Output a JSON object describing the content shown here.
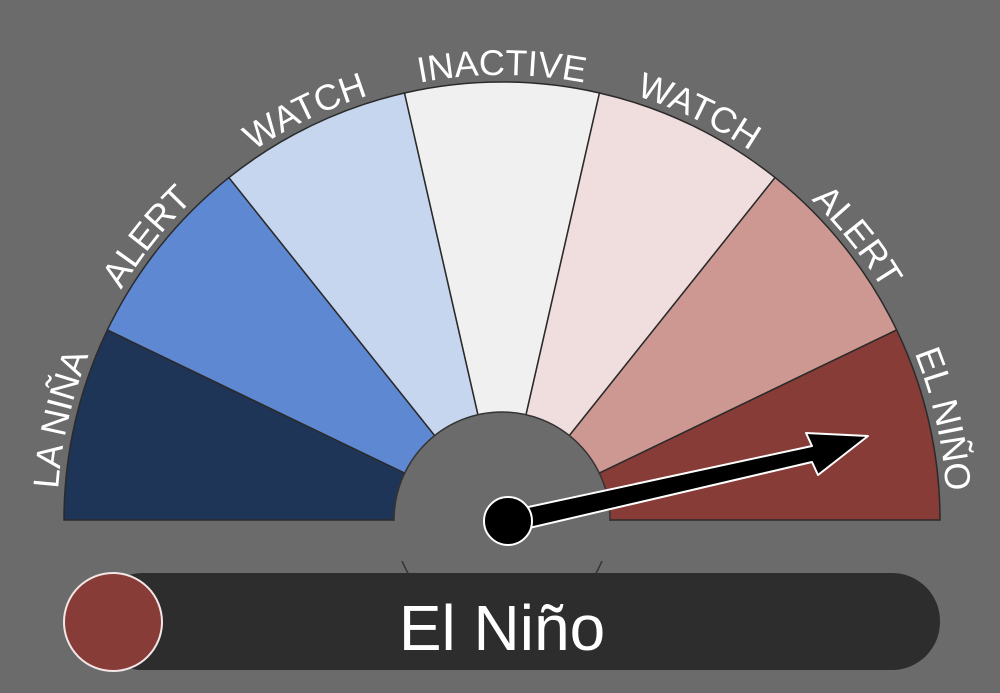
{
  "gauge": {
    "segments": [
      {
        "label": "LA NIÑA",
        "color": "#1f3557"
      },
      {
        "label": "ALERT",
        "color": "#5f88d2"
      },
      {
        "label": "WATCH",
        "color": "#c6d6ee"
      },
      {
        "label": "INACTIVE",
        "color": "#f0f0f0"
      },
      {
        "label": "WATCH",
        "color": "#f0dddd"
      },
      {
        "label": "ALERT",
        "color": "#cc9891"
      },
      {
        "label": "EL NIÑO",
        "color": "#873c37"
      }
    ],
    "needle_category": "El Niño",
    "background_color": "#6b6b6b"
  },
  "status": {
    "label": "El Niño",
    "indicator_color": "#873c37",
    "bar_color": "#2d2d2d"
  }
}
